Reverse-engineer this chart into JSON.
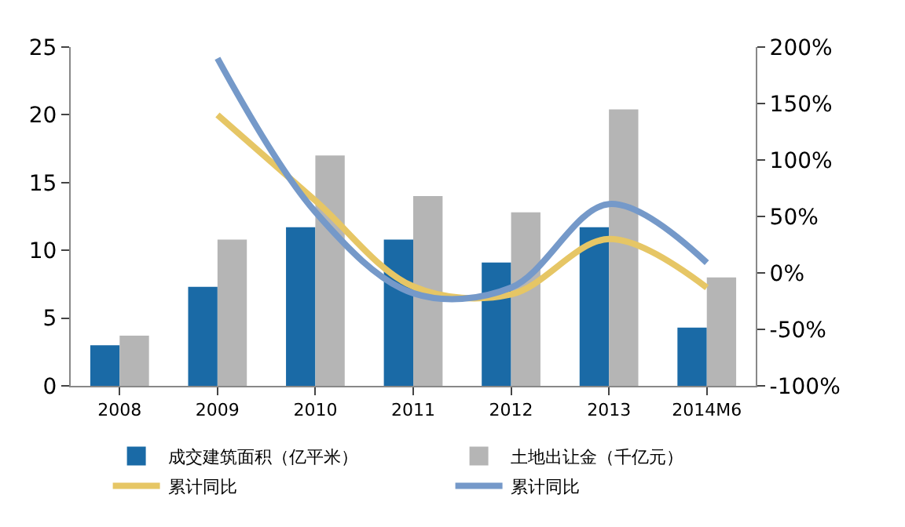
{
  "chart_data": {
    "type": "bar",
    "categories": [
      "2008",
      "2009",
      "2010",
      "2011",
      "2012",
      "2013",
      "2014M6"
    ],
    "series": [
      {
        "name": "成交建筑面积（亿平米）",
        "color": "#1a6aa6",
        "values": [
          3.0,
          7.3,
          11.7,
          10.8,
          9.1,
          11.7,
          4.3
        ]
      },
      {
        "name": "土地出让金（千亿元）",
        "color": "#b5b5b5",
        "values": [
          3.7,
          10.8,
          17.0,
          14.0,
          12.8,
          20.4,
          8.0
        ]
      },
      {
        "name": "累计同比",
        "type": "line",
        "axis": "y2",
        "color": "#e6c665",
        "values": [
          null,
          140,
          64,
          -12,
          -19,
          30,
          -13
        ]
      },
      {
        "name": "累计同比",
        "type": "line",
        "axis": "y2",
        "color": "#7599c9",
        "values": [
          null,
          190,
          54,
          -18,
          -13,
          61,
          9
        ]
      }
    ],
    "ylim": [
      0,
      25
    ],
    "yticks": [
      0,
      5,
      10,
      15,
      20,
      25
    ],
    "y2lim": [
      -100,
      200
    ],
    "y2ticks": [
      {
        "value": -100,
        "label": "-100%"
      },
      {
        "value": -50,
        "label": "-50%"
      },
      {
        "value": 0,
        "label": "0%"
      },
      {
        "value": 50,
        "label": "50%"
      },
      {
        "value": 100,
        "label": "100%"
      },
      {
        "value": 150,
        "label": "150%"
      },
      {
        "value": 200,
        "label": "200%"
      }
    ],
    "grid": false,
    "legend": "bottom"
  }
}
